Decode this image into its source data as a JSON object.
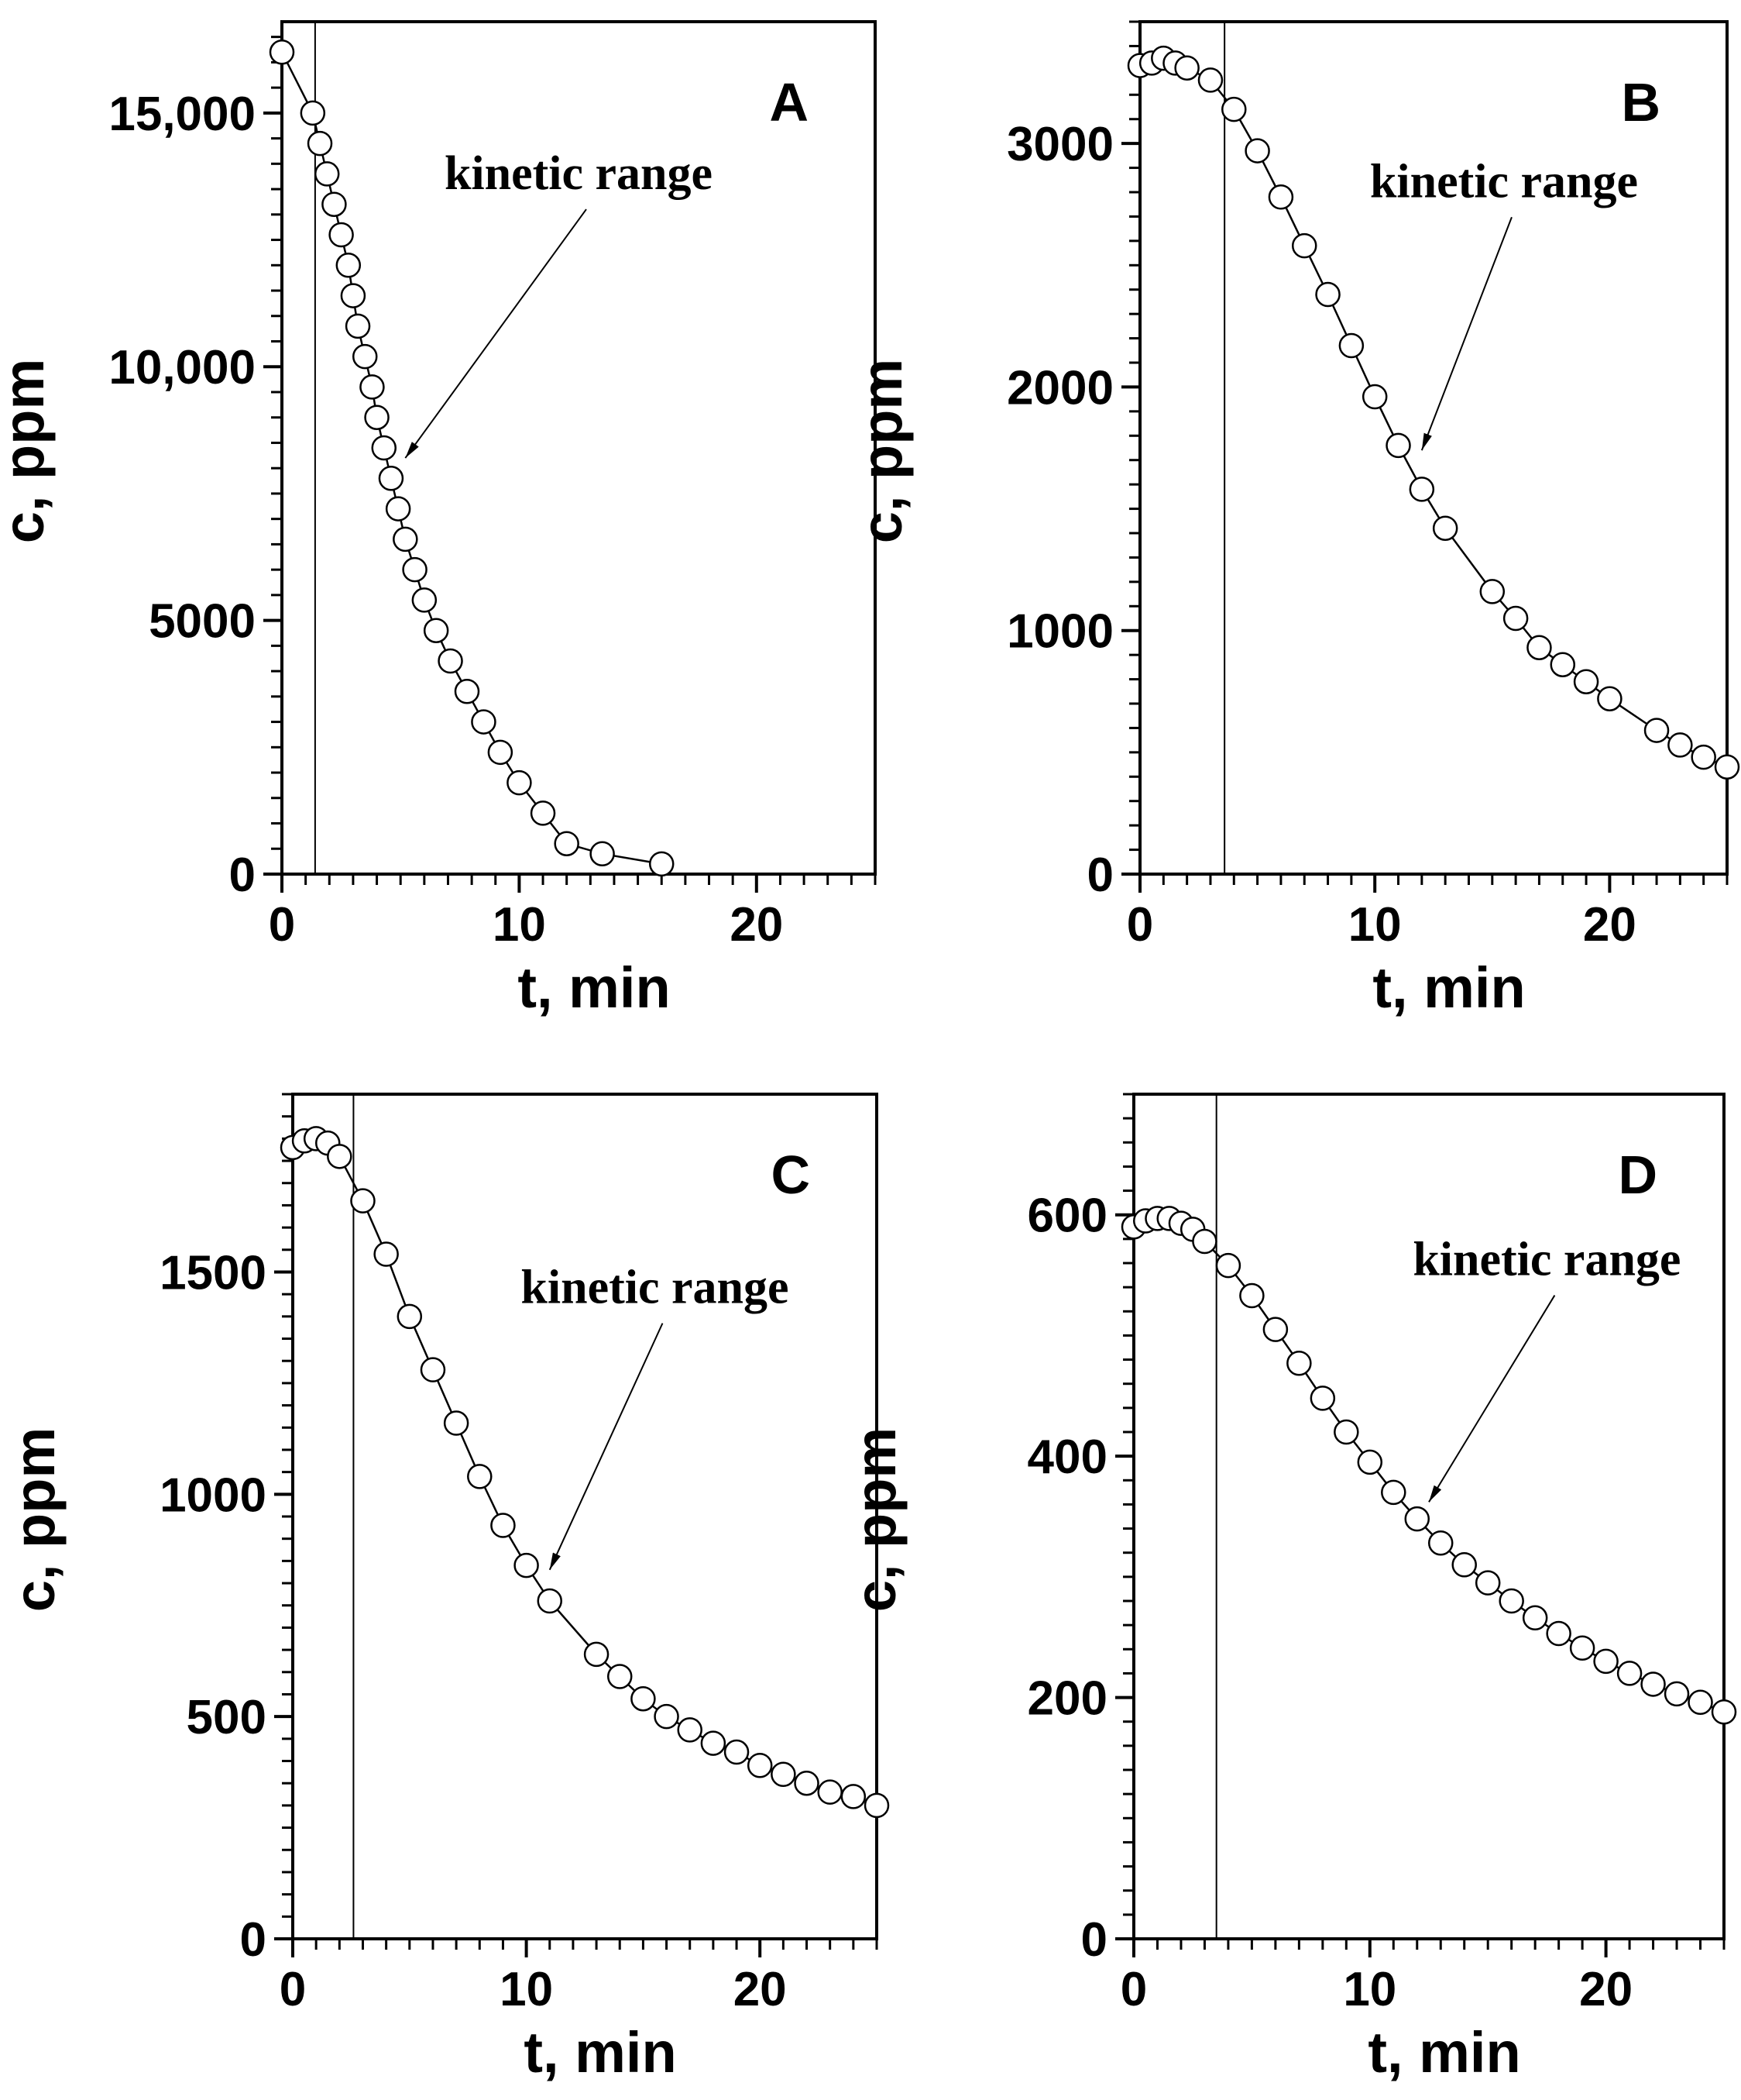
{
  "chart_data": [
    {
      "panel": "A",
      "type": "scatter",
      "xlabel": "t, min",
      "ylabel": "c, ppm",
      "xlim": [
        0,
        25
      ],
      "ylim": [
        0,
        16800
      ],
      "xticks": [
        0,
        10,
        20
      ],
      "xtick_labels": [
        "0",
        "10",
        "20"
      ],
      "yticks": [
        0,
        5000,
        10000,
        15000
      ],
      "ytick_labels": [
        "0",
        "5000",
        "10,000",
        "15,000"
      ],
      "vline_x": 1.4,
      "annotation": {
        "text": "kinetic range",
        "text_at": [
          12.5,
          13500
        ],
        "arrow_to": [
          5.2,
          8200
        ]
      },
      "x": [
        0,
        1.3,
        1.6,
        1.9,
        2.2,
        2.5,
        2.8,
        3.0,
        3.2,
        3.5,
        3.8,
        4.0,
        4.3,
        4.6,
        4.9,
        5.2,
        5.6,
        6.0,
        6.5,
        7.1,
        7.8,
        8.5,
        9.2,
        10.0,
        11.0,
        12.0,
        13.5,
        16.0
      ],
      "values": [
        16200,
        15000,
        14400,
        13800,
        13200,
        12600,
        12000,
        11400,
        10800,
        10200,
        9600,
        9000,
        8400,
        7800,
        7200,
        6600,
        6000,
        5400,
        4800,
        4200,
        3600,
        3000,
        2400,
        1800,
        1200,
        600,
        400,
        200
      ]
    },
    {
      "panel": "B",
      "type": "scatter",
      "xlabel": "t, min",
      "ylabel": "c, ppm",
      "xlim": [
        0,
        25
      ],
      "ylim": [
        0,
        3500
      ],
      "xticks": [
        0,
        10,
        20
      ],
      "xtick_labels": [
        "0",
        "10",
        "20"
      ],
      "yticks": [
        0,
        1000,
        2000,
        3000
      ],
      "ytick_labels": [
        "0",
        "1000",
        "2000",
        "3000"
      ],
      "vline_x": 3.6,
      "annotation": {
        "text": "kinetic range",
        "text_at": [
          15.5,
          2780
        ],
        "arrow_to": [
          12.0,
          1740
        ]
      },
      "x": [
        0,
        0.5,
        1,
        1.5,
        2,
        3,
        4,
        5,
        6,
        7,
        8,
        9,
        10,
        11,
        12,
        13,
        15,
        16,
        17,
        18,
        19,
        20,
        22,
        23,
        24,
        25
      ],
      "values": [
        3320,
        3330,
        3350,
        3330,
        3310,
        3260,
        3140,
        2970,
        2780,
        2580,
        2380,
        2170,
        1960,
        1760,
        1580,
        1420,
        1160,
        1050,
        930,
        860,
        790,
        720,
        590,
        530,
        480,
        440
      ]
    },
    {
      "panel": "C",
      "type": "scatter",
      "xlabel": "t, min",
      "ylabel": "c, ppm",
      "xlim": [
        0,
        25
      ],
      "ylim": [
        0,
        1900
      ],
      "xticks": [
        0,
        10,
        20
      ],
      "xtick_labels": [
        "0",
        "10",
        "20"
      ],
      "yticks": [
        0,
        500,
        1000,
        1500
      ],
      "ytick_labels": [
        "0",
        "500",
        "1000",
        "1500"
      ],
      "vline_x": 2.6,
      "annotation": {
        "text": "kinetic range",
        "text_at": [
          15.5,
          1430
        ],
        "arrow_to": [
          11.0,
          830
        ]
      },
      "x": [
        0,
        0.5,
        1,
        1.5,
        2,
        3,
        4,
        5,
        6,
        7,
        8,
        9,
        10,
        11,
        13,
        14,
        15,
        16,
        17,
        18,
        19,
        20,
        21,
        22,
        23,
        24,
        25
      ],
      "values": [
        1780,
        1795,
        1800,
        1790,
        1760,
        1660,
        1540,
        1400,
        1280,
        1160,
        1040,
        930,
        840,
        760,
        640,
        590,
        540,
        500,
        470,
        440,
        420,
        390,
        370,
        350,
        330,
        320,
        300
      ]
    },
    {
      "panel": "D",
      "type": "scatter",
      "xlabel": "t, min",
      "ylabel": "c, ppm",
      "xlim": [
        0,
        25
      ],
      "ylim": [
        0,
        700
      ],
      "xticks": [
        0,
        10,
        20
      ],
      "xtick_labels": [
        "0",
        "10",
        "20"
      ],
      "yticks": [
        0,
        200,
        400,
        600
      ],
      "ytick_labels": [
        "0",
        "200",
        "400",
        "600"
      ],
      "vline_x": 3.5,
      "annotation": {
        "text": "kinetic range",
        "text_at": [
          17.5,
          550
        ],
        "arrow_to": [
          12.5,
          362
        ]
      },
      "x": [
        0,
        0.5,
        1,
        1.5,
        2,
        2.5,
        3,
        4,
        5,
        6,
        7,
        8,
        9,
        10,
        11,
        12,
        13,
        14,
        15,
        16,
        17,
        18,
        19,
        20,
        21,
        22,
        23,
        24,
        25
      ],
      "values": [
        590,
        595,
        597,
        597,
        593,
        588,
        578,
        558,
        533,
        505,
        477,
        448,
        420,
        395,
        370,
        348,
        328,
        310,
        295,
        280,
        266,
        253,
        241,
        230,
        220,
        211,
        203,
        196,
        188
      ]
    }
  ]
}
